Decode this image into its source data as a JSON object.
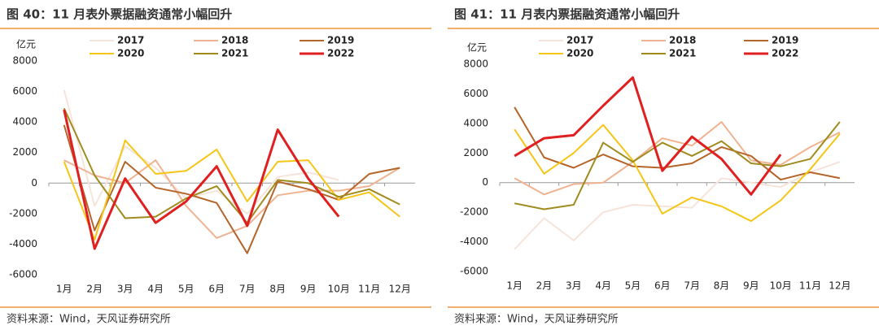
{
  "chart_data": [
    {
      "type": "line",
      "title": "图 40：11 月表外票据融资通常小幅回升",
      "ylabel": "亿元",
      "source": "资料来源：Wind，天风证券研究所",
      "categories": [
        "1月",
        "2月",
        "3月",
        "4月",
        "5月",
        "6月",
        "7月",
        "8月",
        "9月",
        "10月",
        "11月",
        "12月"
      ],
      "ylim": [
        -6000,
        8000
      ],
      "yticks": [
        -6000,
        -4000,
        -2000,
        0,
        2000,
        4000,
        6000,
        8000
      ],
      "series": [
        {
          "name": "2017",
          "color": "#f6e4da",
          "values": [
            6100,
            -1500,
            2400,
            1000,
            -1000,
            -500,
            -2000,
            400,
            700,
            200,
            null,
            null
          ]
        },
        {
          "name": "2018",
          "color": "#f0b391",
          "values": [
            1500,
            500,
            0,
            1500,
            -1500,
            -3600,
            -2800,
            -800,
            -500,
            -500,
            -200,
            1000
          ]
        },
        {
          "name": "2019",
          "color": "#b5652a",
          "values": [
            3800,
            -3100,
            1400,
            -300,
            -700,
            -1300,
            -4600,
            100,
            -400,
            -1100,
            600,
            1000
          ]
        },
        {
          "name": "2020",
          "color": "#f5c518",
          "values": [
            1400,
            -3700,
            2800,
            600,
            800,
            2200,
            -1200,
            1400,
            1500,
            -1100,
            -600,
            -2200
          ]
        },
        {
          "name": "2021",
          "color": "#a08c1e",
          "values": [
            4900,
            500,
            -2300,
            -2200,
            -1000,
            -200,
            -2600,
            200,
            0,
            -900,
            -400,
            -1400
          ]
        },
        {
          "name": "2022",
          "color": "#e02020",
          "values": [
            4800,
            -4300,
            300,
            -2600,
            -1200,
            1100,
            -2800,
            3500,
            300,
            -2200,
            null,
            null
          ]
        }
      ]
    },
    {
      "type": "line",
      "title": "图 41：11 月表内票据融资通常小幅回升",
      "ylabel": "亿元",
      "source": "资料来源：Wind，天风证券研究所",
      "categories": [
        "1月",
        "2月",
        "3月",
        "4月",
        "5月",
        "6月",
        "7月",
        "8月",
        "9月",
        "10月",
        "11月",
        "12月"
      ],
      "ylim": [
        -6000,
        8000
      ],
      "yticks": [
        -6000,
        -4000,
        -2000,
        0,
        2000,
        4000,
        6000,
        8000
      ],
      "series": [
        {
          "name": "2017",
          "color": "#f6e4da",
          "values": [
            -4500,
            -2400,
            -3900,
            -2000,
            -1500,
            -1600,
            -1700,
            300,
            0,
            -300,
            700,
            1400
          ]
        },
        {
          "name": "2018",
          "color": "#f0b391",
          "values": [
            300,
            -800,
            -100,
            0,
            1400,
            3000,
            2500,
            4100,
            1500,
            1200,
            2400,
            3400
          ]
        },
        {
          "name": "2019",
          "color": "#b5652a",
          "values": [
            5100,
            1700,
            1000,
            1900,
            1100,
            1000,
            1300,
            2400,
            1800,
            200,
            700,
            300
          ]
        },
        {
          "name": "2020",
          "color": "#f5c518",
          "values": [
            3600,
            600,
            2000,
            3900,
            1500,
            -2100,
            -1000,
            -1600,
            -2600,
            -1200,
            900,
            3300
          ]
        },
        {
          "name": "2021",
          "color": "#a08c1e",
          "values": [
            -1400,
            -1800,
            -1500,
            2700,
            1400,
            2700,
            1800,
            2800,
            1300,
            1100,
            1600,
            4100
          ]
        },
        {
          "name": "2022",
          "color": "#e02020",
          "values": [
            1800,
            3000,
            3200,
            5200,
            7100,
            800,
            3100,
            1600,
            -800,
            1900,
            null,
            null
          ]
        }
      ]
    }
  ]
}
